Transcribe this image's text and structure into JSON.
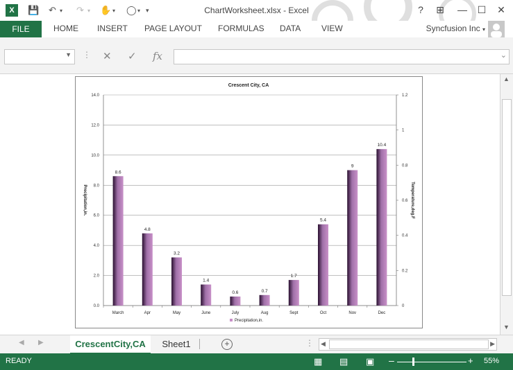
{
  "window": {
    "title": "ChartWorksheet.xlsx - Excel",
    "help": "?",
    "minimize": "—",
    "maximize": "☐",
    "close": "✕"
  },
  "ribbon": {
    "tabs": [
      "FILE",
      "HOME",
      "INSERT",
      "PAGE LAYOUT",
      "FORMULAS",
      "DATA",
      "VIEW"
    ],
    "user": "Syncfusion Inc"
  },
  "formula_bar": {
    "name_box": "",
    "fx": "fx",
    "formula": ""
  },
  "chart_data": {
    "type": "bar",
    "title": "Crescent City, CA",
    "categories": [
      "March",
      "Apr",
      "May",
      "June",
      "July",
      "Aug",
      "Sept",
      "Oct",
      "Nov",
      "Dec"
    ],
    "series": [
      {
        "name": "Precipitation,in.",
        "values": [
          8.6,
          4.8,
          3.2,
          1.4,
          0.6,
          0.7,
          1.7,
          5.4,
          9,
          10.4
        ]
      }
    ],
    "data_labels": [
      "8.6",
      "4.8",
      "3.2",
      "1.4",
      "0.6",
      "0.7",
      "1.7",
      "5.4",
      "9",
      "10.4"
    ],
    "ylabel": "Precipitation,in.",
    "y2label": "Temperature,deg.F",
    "ylim": [
      0,
      14
    ],
    "y_ticks": [
      "0.0",
      "2.0",
      "4.0",
      "6.0",
      "8.0",
      "10.0",
      "12.0",
      "14.0"
    ],
    "y2lim": [
      0,
      1.2
    ],
    "y2_ticks": [
      "0",
      "0.2",
      "0.4",
      "0.6",
      "0.8",
      "1",
      "1.2"
    ],
    "legend_position": "bottom",
    "grid": true,
    "bar_color": "#c890c8"
  },
  "sheets": {
    "tabs": [
      "CrescentCity,CA",
      "Sheet1"
    ],
    "active": "CrescentCity,CA",
    "add": "+"
  },
  "status": {
    "ready": "READY",
    "zoom": "55%"
  },
  "colors": {
    "accent": "#217346"
  }
}
